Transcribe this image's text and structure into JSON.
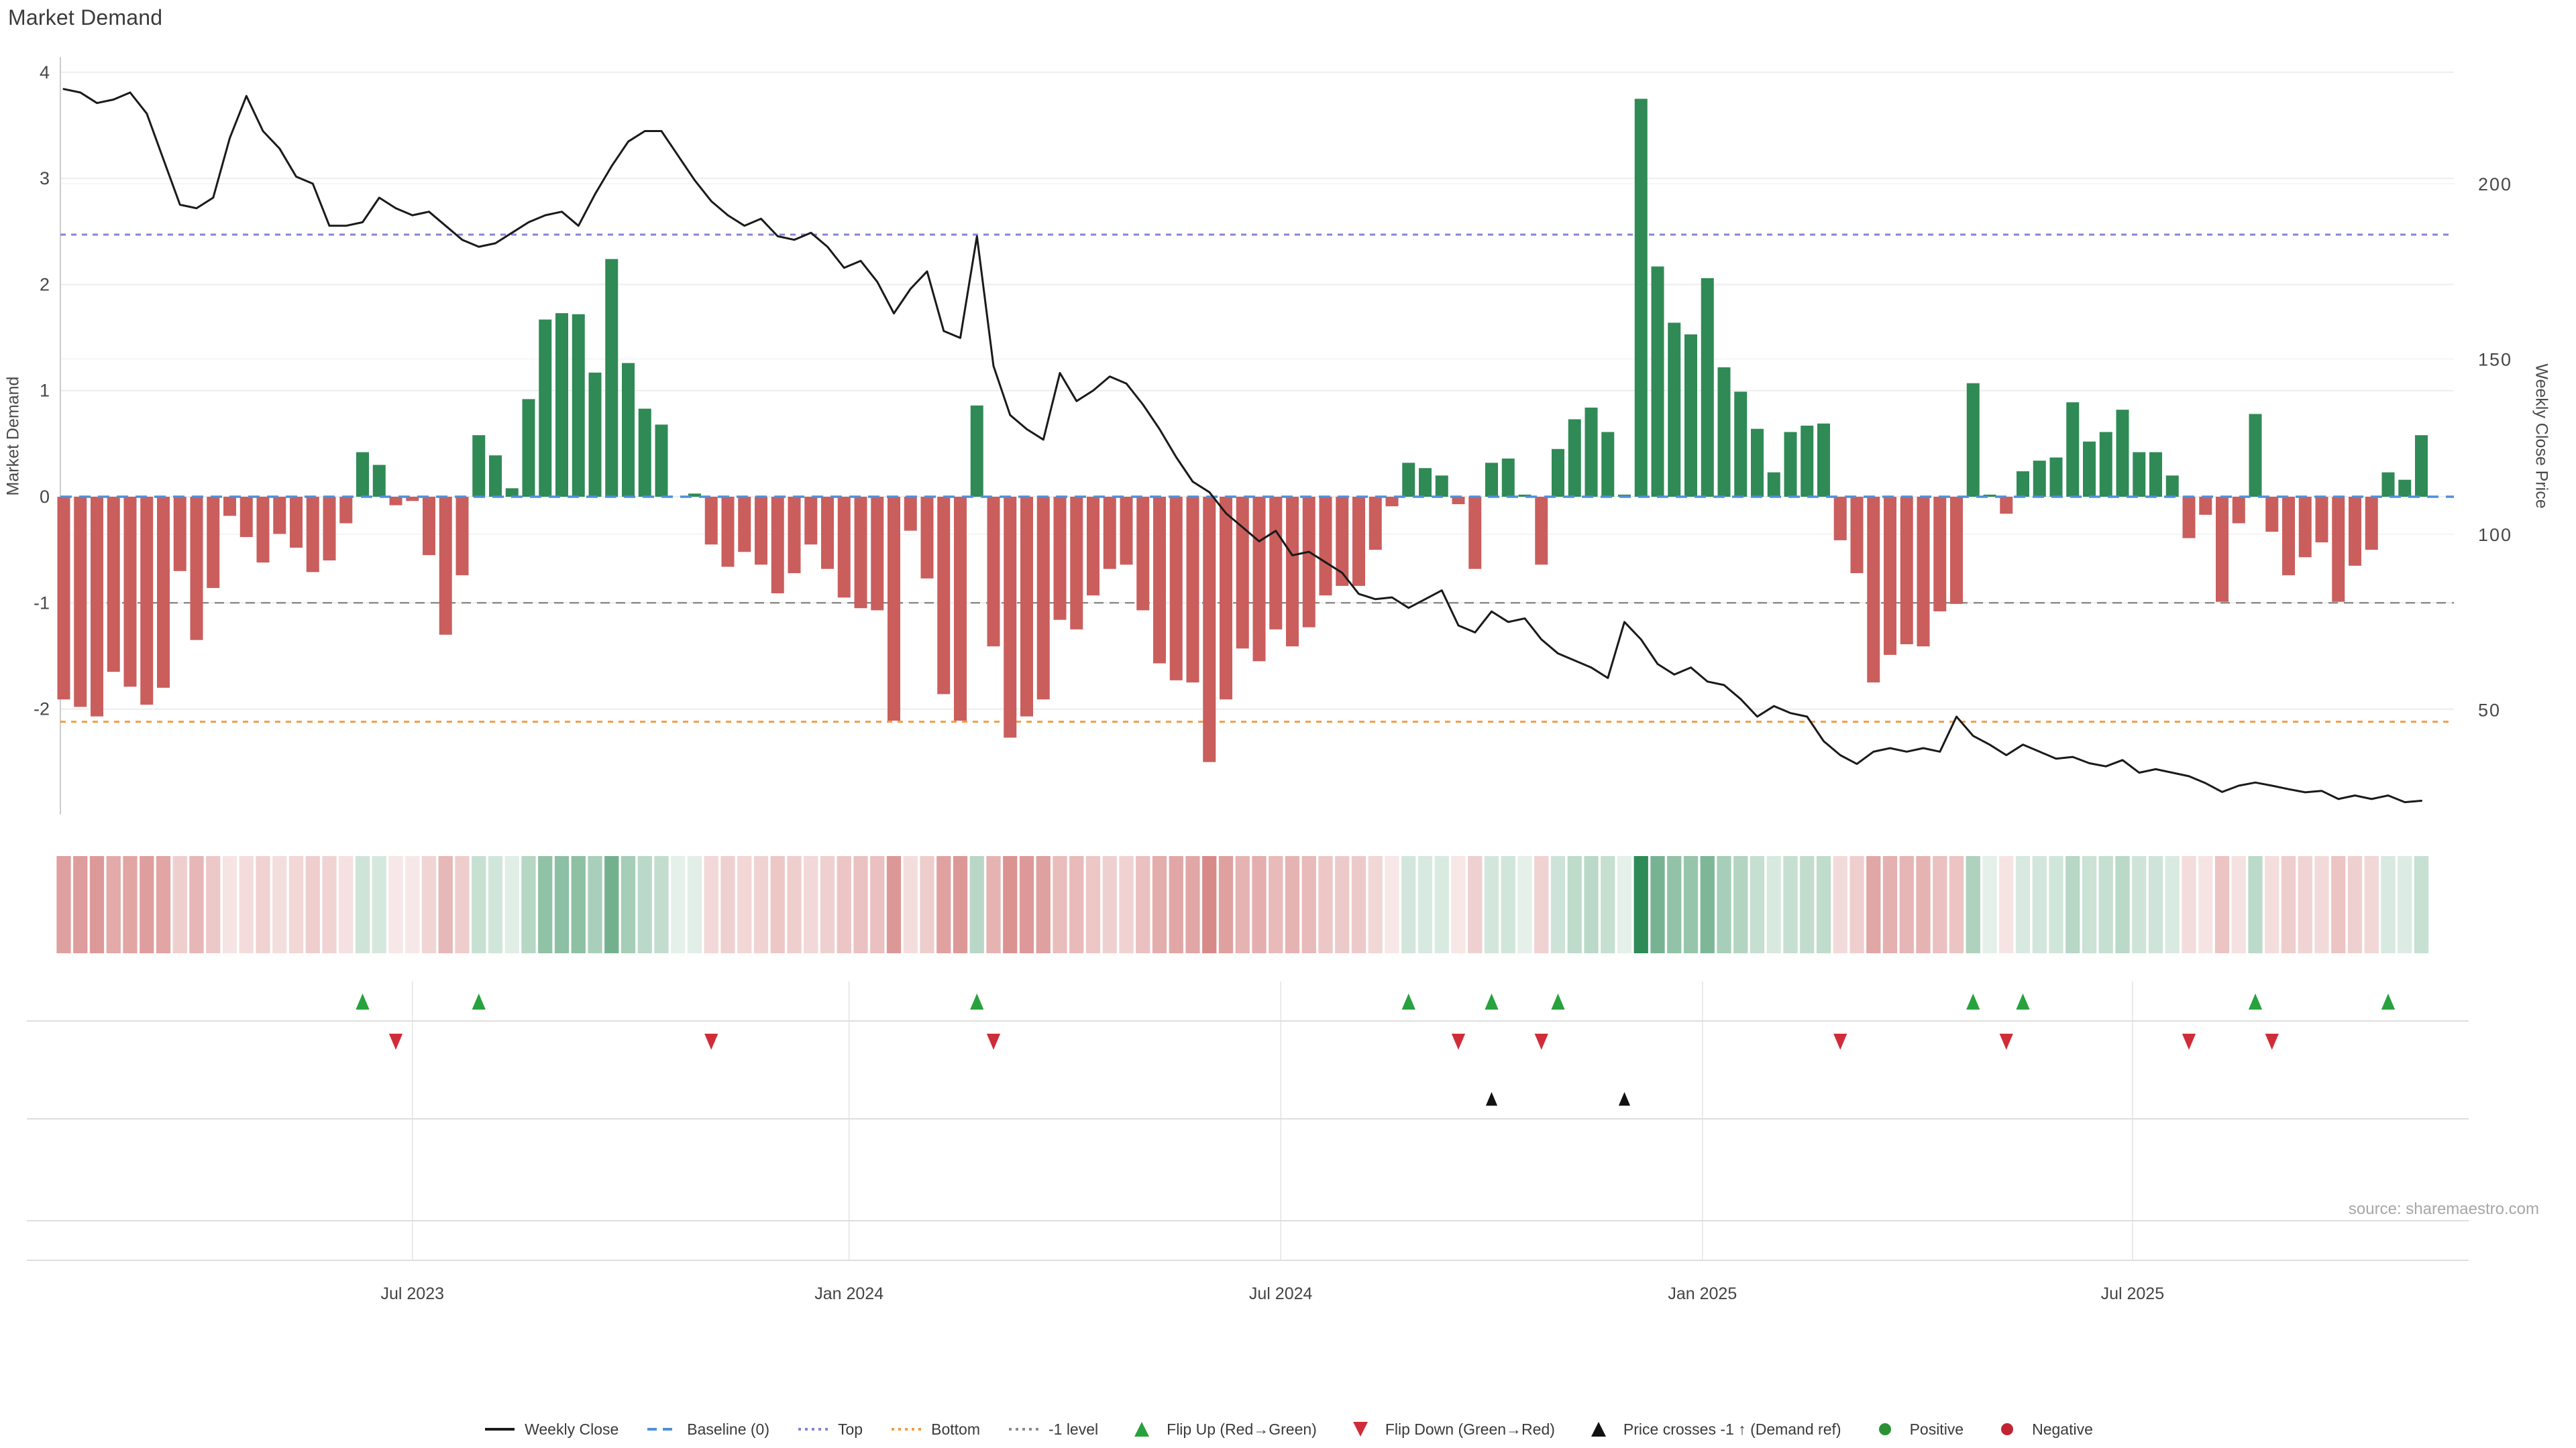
{
  "title": "Market Demand",
  "source": "source: sharemaestro.com",
  "y_axis_left": {
    "label": "Market Demand",
    "ticks": [
      4,
      3,
      2,
      1,
      0,
      -1,
      -2
    ]
  },
  "y_axis_right": {
    "label": "Weekly Close Price",
    "ticks": [
      200,
      150,
      100,
      50
    ]
  },
  "x_axis": {
    "ticks": [
      {
        "label": "Jul 2023",
        "week": 21.0
      },
      {
        "label": "Jan 2024",
        "week": 47.3
      },
      {
        "label": "Jul 2024",
        "week": 73.3
      },
      {
        "label": "Jan 2025",
        "week": 98.7
      },
      {
        "label": "Jul 2025",
        "week": 124.6
      }
    ]
  },
  "colors": {
    "bar_positive": "#2f8a56",
    "bar_negative": "#ca5e5d",
    "price_line": "#1a1a1a",
    "baseline": "#4f8fd9",
    "top_line": "#8583d7",
    "bottom_line": "#f59b42",
    "minus1_line": "#8c8c8c",
    "flip_up": "#27a23e",
    "flip_down": "#cf2d39",
    "price_cross": "#111111",
    "positive_dot": "#2a9134",
    "negative_dot": "#c22433",
    "grid": "#ededed",
    "grid_price": "#f2f2f2",
    "spine": "#cccccc",
    "panel_grid": "#e4e4e4",
    "separator": "#dedede",
    "axis_text": "#474747",
    "date_text": "#444444"
  },
  "legend": [
    {
      "label": "Weekly Close",
      "marker": "line",
      "color": "#1a1a1a"
    },
    {
      "label": "Baseline (0)",
      "marker": "dash",
      "color": "#4f8fd9"
    },
    {
      "label": "Top",
      "marker": "dots",
      "color": "#8583d7"
    },
    {
      "label": "Bottom",
      "marker": "dots",
      "color": "#f59b42"
    },
    {
      "label": "-1 level",
      "marker": "dots",
      "color": "#8c8c8c"
    },
    {
      "label": "Flip Up (Red→Green)",
      "marker": "triangle-up",
      "color": "#27a23e"
    },
    {
      "label": "Flip Down (Green→Red)",
      "marker": "triangle-down",
      "color": "#cf2d39"
    },
    {
      "label": "Price crosses -1 ↑ (Demand ref)",
      "marker": "triangle-up",
      "color": "#111111"
    },
    {
      "label": "Positive",
      "marker": "dot",
      "color": "#2a9134"
    },
    {
      "label": "Negative",
      "marker": "dot",
      "color": "#c22433"
    }
  ],
  "chart_data": {
    "type": "bar+line",
    "title": "Market Demand",
    "ylabel_left": "Market Demand",
    "ylabel_right": "Weekly Close Price",
    "weeks": 143,
    "ylim_demand": [
      -3.0,
      4.15
    ],
    "ylim_price_ticks": [
      50,
      200
    ],
    "reference_lines": {
      "baseline": 0,
      "top": 2.47,
      "bottom": -2.12,
      "minus1": -1
    },
    "demand": [
      -1.91,
      -1.98,
      -2.07,
      -1.65,
      -1.79,
      -1.96,
      -1.8,
      -0.7,
      -1.35,
      -0.86,
      -0.18,
      -0.38,
      -0.62,
      -0.35,
      -0.48,
      -0.71,
      -0.6,
      -0.25,
      0.42,
      0.3,
      -0.08,
      -0.04,
      -0.55,
      -1.3,
      -0.74,
      0.58,
      0.39,
      0.08,
      0.92,
      1.67,
      1.73,
      1.72,
      1.17,
      2.24,
      1.26,
      0.83,
      0.68,
      0.0,
      0.03,
      -0.45,
      -0.66,
      -0.52,
      -0.64,
      -0.91,
      -0.72,
      -0.45,
      -0.68,
      -0.95,
      -1.05,
      -1.07,
      -2.11,
      -0.32,
      -0.77,
      -1.86,
      -2.11,
      0.86,
      -1.41,
      -2.27,
      -2.07,
      -1.91,
      -1.16,
      -1.25,
      -0.93,
      -0.68,
      -0.64,
      -1.07,
      -1.57,
      -1.73,
      -1.75,
      -2.5,
      -1.91,
      -1.43,
      -1.55,
      -1.25,
      -1.41,
      -1.23,
      -0.93,
      -0.84,
      -0.84,
      -0.5,
      -0.09,
      0.32,
      0.27,
      0.2,
      -0.07,
      -0.68,
      0.32,
      0.36,
      0.02,
      -0.64,
      0.45,
      0.73,
      0.84,
      0.61,
      0.02,
      3.75,
      2.17,
      1.64,
      1.53,
      2.06,
      1.22,
      0.99,
      0.64,
      0.23,
      0.61,
      0.67,
      0.69,
      -0.41,
      -0.72,
      -1.75,
      -1.49,
      -1.39,
      -1.41,
      -1.08,
      -1.01,
      1.07,
      0.02,
      -0.16,
      0.24,
      0.34,
      0.37,
      0.89,
      0.52,
      0.61,
      0.82,
      0.42,
      0.42,
      0.2,
      -0.39,
      -0.17,
      -0.99,
      -0.25,
      0.78,
      -0.33,
      -0.74,
      -0.57,
      -0.43,
      -0.99,
      -0.65,
      -0.5,
      0.23,
      0.16,
      0.58
    ],
    "price": [
      227,
      226,
      223,
      224,
      226,
      220,
      207,
      194,
      193,
      196,
      213,
      225,
      215,
      210,
      202,
      200,
      188,
      188,
      189,
      196,
      193,
      191,
      192,
      188,
      184,
      182,
      183,
      186,
      189,
      191,
      192,
      188,
      197,
      205,
      212,
      215,
      215,
      208,
      201,
      195,
      191,
      188,
      190,
      185,
      184,
      186,
      182,
      176,
      178,
      172,
      163,
      170,
      175,
      158,
      156,
      185,
      148,
      134,
      130,
      127,
      146,
      138,
      141,
      145,
      143,
      137,
      130,
      122,
      115,
      112,
      106,
      102,
      98,
      101,
      94,
      95,
      92,
      89,
      83,
      81.5,
      82,
      79,
      81.5,
      84,
      74,
      72,
      78,
      75,
      76,
      70,
      66,
      64,
      62,
      59,
      75,
      70,
      63,
      60,
      62,
      58,
      57,
      53,
      48,
      51,
      49,
      48,
      41,
      37,
      34.5,
      38,
      39,
      38,
      39,
      38,
      48,
      42.5,
      40,
      37,
      40,
      38,
      36,
      36.5,
      34.7,
      33.8,
      35.6,
      32,
      33,
      32,
      31,
      29,
      26.5,
      28.3,
      29.2,
      28.3,
      27.3,
      26.4,
      26.8,
      24.5,
      25.5,
      24.5,
      25.5,
      23.6,
      24
    ],
    "flip_up_weeks": [
      18,
      25,
      55,
      81,
      86,
      90,
      115,
      118,
      132,
      140
    ],
    "flip_down_weeks": [
      20,
      39,
      56,
      84,
      89,
      107,
      117,
      128,
      133
    ],
    "price_cross_weeks": [
      86,
      94
    ],
    "legend_position": "bottom-center",
    "grid": "horizontal-only"
  }
}
